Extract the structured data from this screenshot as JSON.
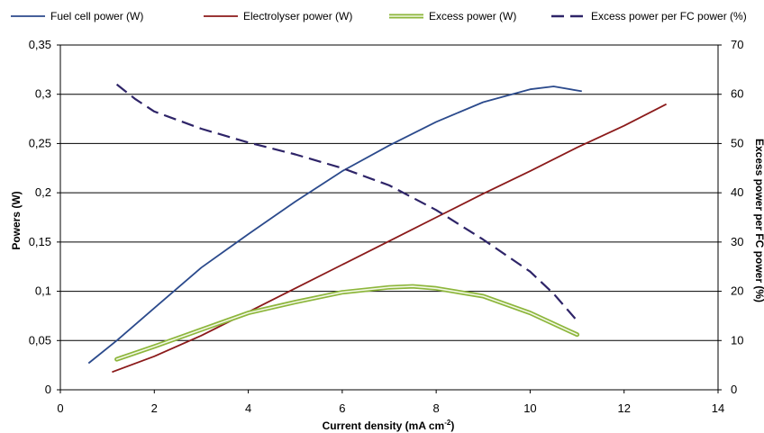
{
  "chart_data": {
    "type": "line",
    "xlabel": "Current density (mA cm-2)",
    "xlabel_base": "Current density (mA cm",
    "xlabel_sup": "-2",
    "xlabel_tail": ")",
    "ylabel": "Powers (W)",
    "y2label": "Excess  power per FC power (%)",
    "xlim": [
      0,
      14
    ],
    "ylim": [
      0,
      0.35
    ],
    "y2lim": [
      0,
      70
    ],
    "x_ticks": [
      0,
      2,
      4,
      6,
      8,
      10,
      12,
      14
    ],
    "x_tick_labels": [
      "0",
      "2",
      "4",
      "6",
      "8",
      "10",
      "12",
      "14"
    ],
    "y_ticks": [
      0,
      0.05,
      0.1,
      0.15,
      0.2,
      0.25,
      0.3,
      0.35
    ],
    "y_tick_labels": [
      "0",
      "0,05",
      "0,1",
      "0,15",
      "0,2",
      "0,25",
      "0,3",
      "0,35"
    ],
    "y2_ticks": [
      0,
      10,
      20,
      30,
      40,
      50,
      60,
      70
    ],
    "y2_tick_labels": [
      "0",
      "10",
      "20",
      "30",
      "40",
      "50",
      "60",
      "70"
    ],
    "grid": "horizontal",
    "legend_position": "top",
    "series": [
      {
        "name": "Fuel cell power (W)",
        "axis": "left",
        "color": "#2b4a8c",
        "style": "solid",
        "x": [
          0.6,
          1.2,
          2,
          3,
          4,
          5,
          6,
          7,
          8,
          9,
          10,
          10.5,
          11.1
        ],
        "y": [
          0.027,
          0.05,
          0.083,
          0.124,
          0.158,
          0.191,
          0.222,
          0.248,
          0.272,
          0.292,
          0.305,
          0.308,
          0.303
        ]
      },
      {
        "name": "Electrolyser power (W)",
        "axis": "left",
        "color": "#8b1a1a",
        "style": "solid",
        "x": [
          1.1,
          2,
          3,
          4,
          5,
          6,
          7,
          8,
          9,
          10,
          11,
          12,
          12.9
        ],
        "y": [
          0.018,
          0.034,
          0.055,
          0.079,
          0.103,
          0.127,
          0.151,
          0.175,
          0.199,
          0.222,
          0.246,
          0.268,
          0.29
        ]
      },
      {
        "name": "Excess power (W)",
        "axis": "left",
        "color": "#8db63c",
        "style": "double",
        "x": [
          1.2,
          2,
          3,
          4,
          5,
          6,
          7,
          7.5,
          8,
          9,
          10,
          11
        ],
        "y": [
          0.031,
          0.044,
          0.061,
          0.078,
          0.089,
          0.099,
          0.104,
          0.105,
          0.103,
          0.095,
          0.078,
          0.056
        ]
      },
      {
        "name": "Excess power per FC power (%)",
        "axis": "right",
        "color": "#2e2468",
        "style": "dashed",
        "x": [
          1.2,
          1.6,
          2,
          3,
          4,
          5,
          6,
          7,
          8,
          9,
          10,
          10.5,
          11
        ],
        "y": [
          62,
          59,
          56.5,
          53,
          50.2,
          47.8,
          45,
          41.5,
          36.5,
          30.5,
          24,
          19.5,
          14
        ]
      }
    ]
  }
}
